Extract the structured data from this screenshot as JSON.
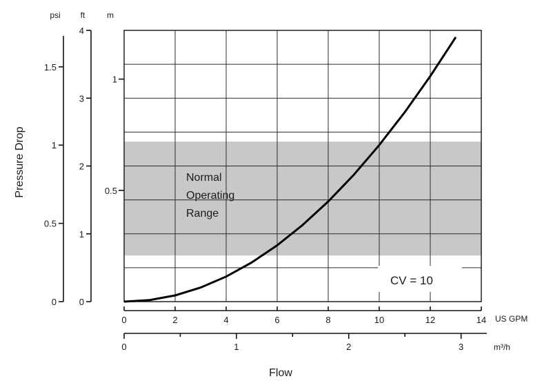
{
  "chart_data": {
    "type": "line",
    "x_axis_primary": {
      "unit": "US GPM",
      "range": [
        0,
        14
      ],
      "ticks": [
        0,
        2,
        4,
        6,
        8,
        10,
        12,
        14
      ],
      "tick_labels": [
        "0",
        "2",
        "4",
        "6",
        "8",
        "10",
        "12",
        "14"
      ]
    },
    "x_axis_secondary": {
      "unit": "m³/h",
      "range": [
        0,
        3.18
      ],
      "ticks": [
        0,
        1,
        2,
        3
      ],
      "tick_labels": [
        "0",
        "1",
        "2",
        "3"
      ]
    },
    "xlabel": "Flow",
    "ylabel": "Pressure Drop",
    "y_axis_psi": {
      "unit": "psi",
      "range": [
        0,
        1.733
      ],
      "ticks": [
        0,
        0.5,
        1,
        1.5
      ],
      "tick_labels": [
        "0",
        "0.5",
        "1",
        "1.5"
      ]
    },
    "y_axis_ft": {
      "unit": "ft",
      "range": [
        0,
        4
      ],
      "ticks": [
        0,
        1,
        2,
        3,
        4
      ],
      "tick_labels": [
        "0",
        "1",
        "2",
        "3",
        "4"
      ]
    },
    "y_axis_m": {
      "unit": "m",
      "range": [
        0,
        1.219
      ],
      "ticks": [
        0.5,
        1
      ],
      "tick_labels": [
        "0.5",
        "1"
      ]
    },
    "series": [
      {
        "name": "CV = 10",
        "x_unit": "US GPM",
        "y_unit": "ft",
        "x": [
          0,
          1,
          2,
          3,
          4,
          5,
          6,
          7,
          8,
          9,
          10,
          11,
          12,
          13
        ],
        "y": [
          0,
          0.023,
          0.092,
          0.208,
          0.369,
          0.577,
          0.831,
          1.131,
          1.477,
          1.869,
          2.308,
          2.793,
          3.324,
          3.9
        ]
      }
    ],
    "shaded_band": {
      "label": "Normal Operating Range",
      "label_lines": [
        "Normal",
        "Operating",
        "Range"
      ],
      "y_unit": "ft",
      "y_range": [
        0.68,
        2.36
      ],
      "color": "#c8c8c8"
    },
    "annotation": {
      "text": "CV = 10"
    },
    "grid": true,
    "colors": {
      "curve": "#000000",
      "grid": "#2a2a2a",
      "band": "#c8c8c8"
    }
  }
}
